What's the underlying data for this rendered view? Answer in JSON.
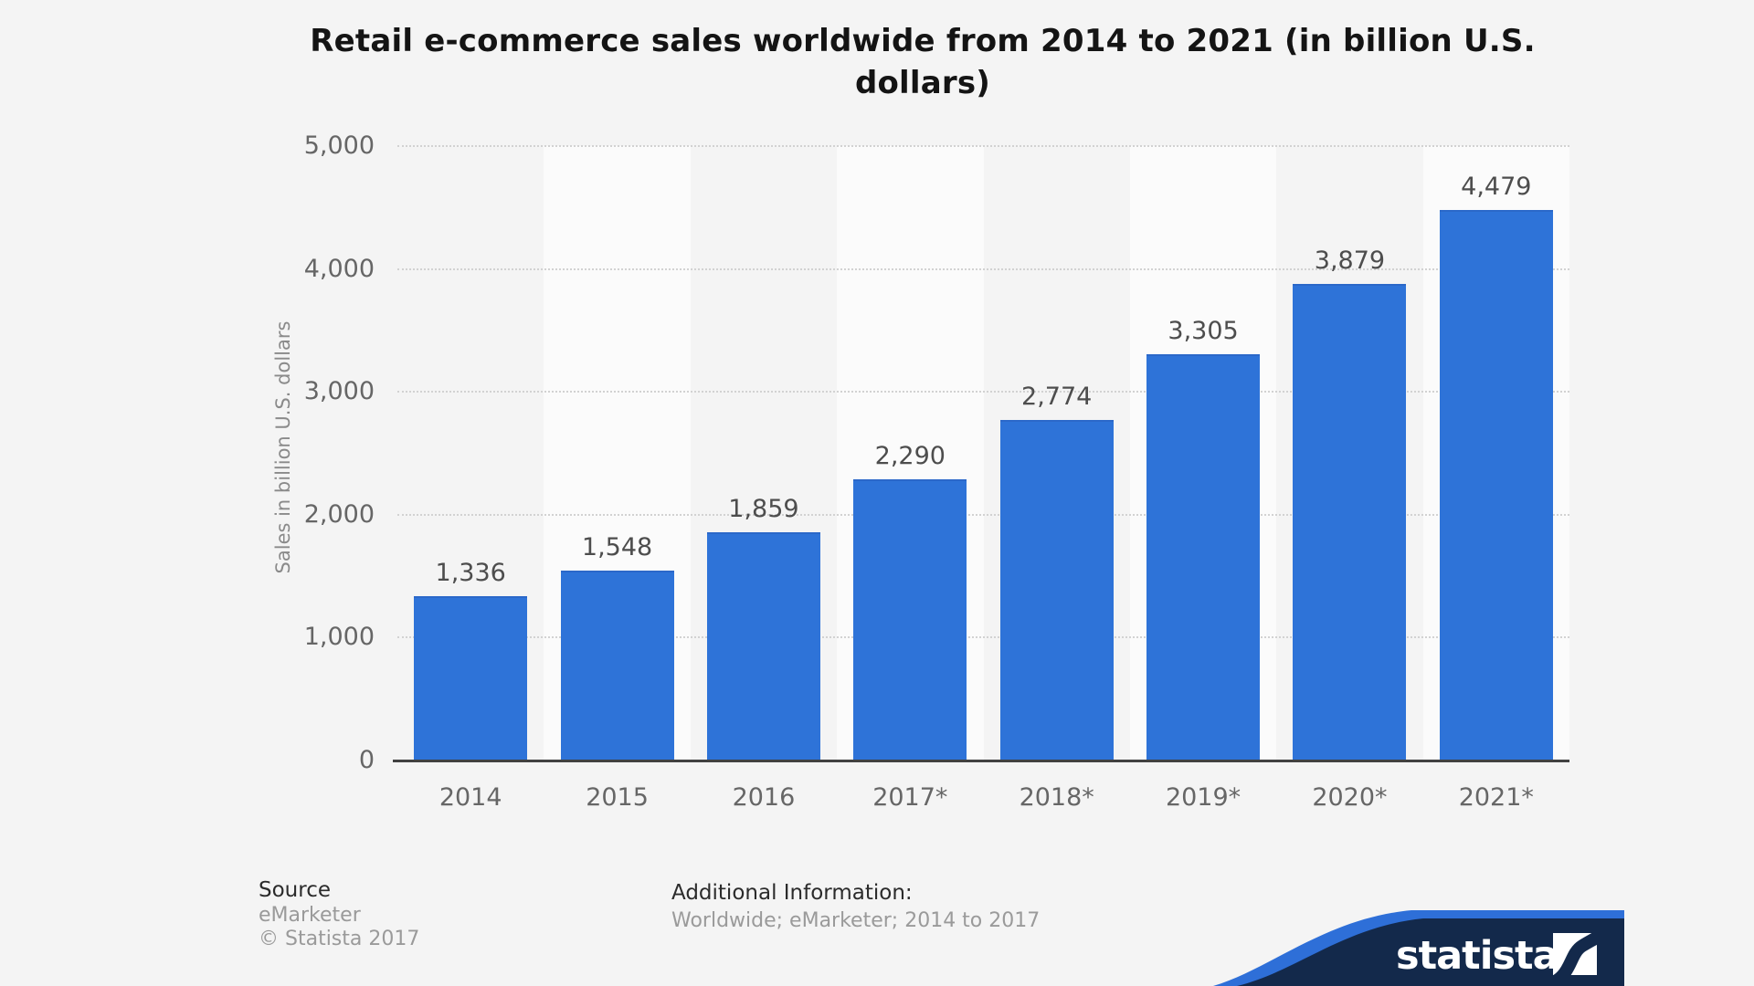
{
  "header": {
    "title_lines": [
      "Retail e-commerce sales worldwide from 2014 to 2021 (in billion U.S.",
      "dollars)"
    ]
  },
  "chart_data": {
    "type": "bar",
    "title": "Retail e-commerce sales worldwide from 2014 to 2021 (in billion U.S. dollars)",
    "xlabel": "",
    "ylabel": "Sales in billion U.S. dollars",
    "categories": [
      "2014",
      "2015",
      "2016",
      "2017*",
      "2018*",
      "2019*",
      "2020*",
      "2021*"
    ],
    "values": [
      1336,
      1548,
      1859,
      2290,
      2774,
      3305,
      3879,
      4479
    ],
    "value_labels": [
      "1,336",
      "1,548",
      "1,859",
      "2,290",
      "2,774",
      "3,305",
      "3,879",
      "4,479"
    ],
    "ylim": [
      0,
      5000
    ],
    "yticks": [
      {
        "value": 5000,
        "label": "5,000"
      },
      {
        "value": 4000,
        "label": "4,000"
      },
      {
        "value": 3000,
        "label": "3,000"
      },
      {
        "value": 2000,
        "label": "2,000"
      },
      {
        "value": 1000,
        "label": "1,000"
      },
      {
        "value": 0,
        "label": "0"
      }
    ],
    "grid": "horizontal-dotted",
    "legend": null,
    "bar_color": "#2e73d8",
    "column_band_color": "#fbfbfb",
    "background_color": "#f4f4f4"
  },
  "footer": {
    "source_heading": "Source",
    "source_name": "eMarketer",
    "copyright": "© Statista 2017",
    "additional_heading": "Additional Information:",
    "additional_text": "Worldwide; eMarketer; 2014 to 2017"
  },
  "brand": {
    "name": "statista",
    "banner_navy": "#13294b",
    "banner_blue": "#2e6fd8"
  }
}
